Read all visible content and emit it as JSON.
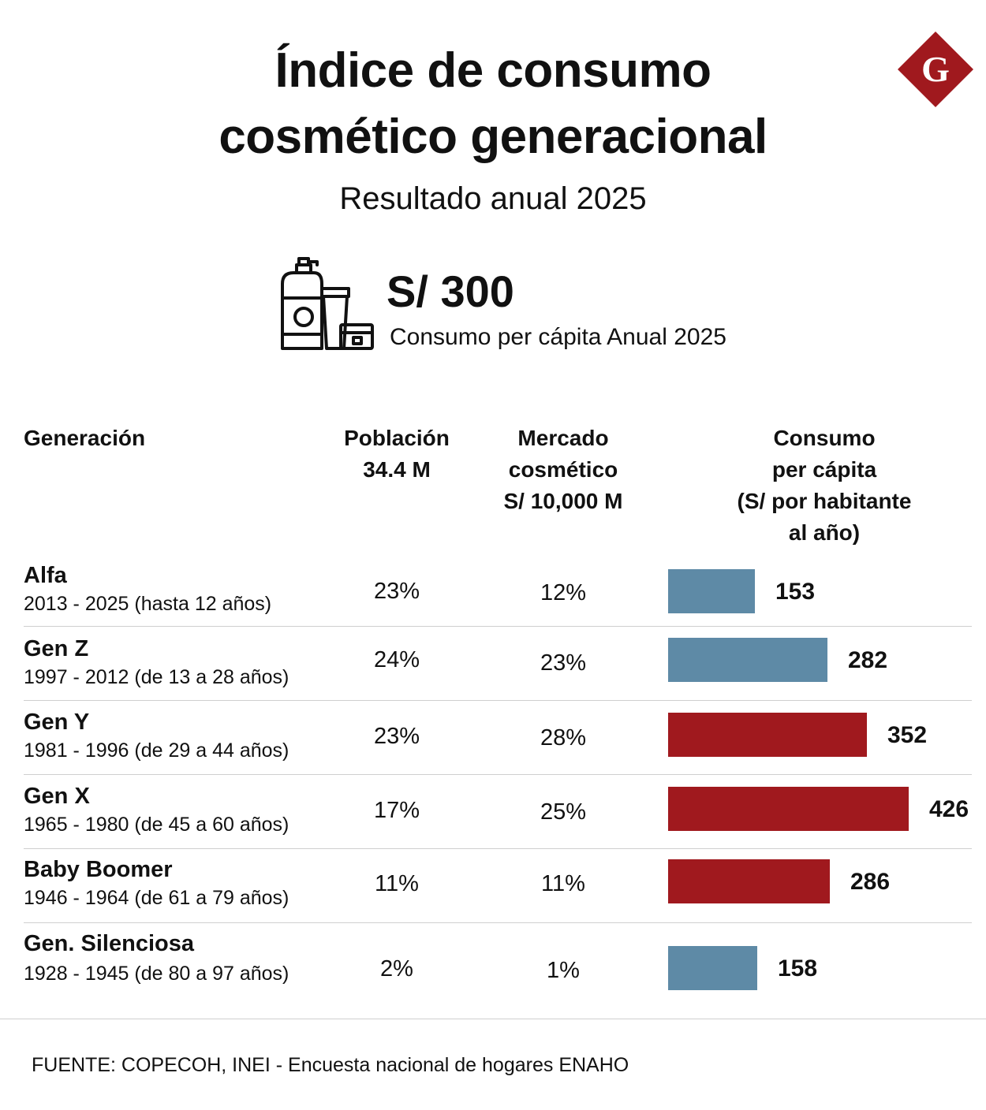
{
  "header": {
    "title_line1": "Índice de consumo",
    "title_line2": "cosmético generacional",
    "subtitle": "Resultado anual 2025",
    "logo_letter": "G"
  },
  "kpi": {
    "icon": "cosmetics-bottles-icon",
    "value": "S/ 300",
    "label": "Consumo per cápita Anual 2025"
  },
  "table": {
    "headers": {
      "generacion": "Generación",
      "poblacion": [
        "Población",
        "34.4 M"
      ],
      "mercado": [
        "Mercado",
        "cosmético",
        "S/ 10,000 M"
      ],
      "consumo": [
        "Consumo",
        "per cápita",
        "(S/ por habitante",
        "al año)"
      ]
    },
    "rows": [
      {
        "name": "Alfa",
        "years": "2013 - 2025 (hasta 12 años)",
        "poblacion": "23%",
        "mercado": "12%"
      },
      {
        "name": "Gen Z",
        "years": "1997 - 2012 (de 13 a 28 años)",
        "poblacion": "24%",
        "mercado": "23%"
      },
      {
        "name": "Gen Y",
        "years": "1981 - 1996 (de 29 a 44 años)",
        "poblacion": "23%",
        "mercado": "28%"
      },
      {
        "name": "Gen X",
        "years": "1965 - 1980 (de 45 a 60 años)",
        "poblacion": "17%",
        "mercado": "25%"
      },
      {
        "name": "Baby Boomer",
        "years": "1946 - 1964 (de 61 a 79 años)",
        "poblacion": "11%",
        "mercado": "11%"
      },
      {
        "name": "Gen. Silenciosa",
        "years": "1928 - 1945 (de 80 a 97 años)",
        "poblacion": "2%",
        "mercado": "1%"
      }
    ]
  },
  "chart_data": {
    "type": "bar",
    "orientation": "horizontal",
    "categories": [
      "Alfa",
      "Gen Z",
      "Gen Y",
      "Gen X",
      "Baby Boomer",
      "Gen. Silenciosa"
    ],
    "values": [
      153,
      282,
      352,
      426,
      286,
      158
    ],
    "bar_colors": [
      "#5e8aa6",
      "#5e8aa6",
      "#a0191e",
      "#a0191e",
      "#a0191e",
      "#5e8aa6"
    ],
    "data_labels": true,
    "xlim": [
      0,
      426
    ]
  },
  "colors": {
    "blue": "#5e8aa6",
    "red": "#a0191e",
    "logo": "#a0191e"
  },
  "source": "FUENTE: COPECOH, INEI - Encuesta nacional de hogares ENAHO"
}
